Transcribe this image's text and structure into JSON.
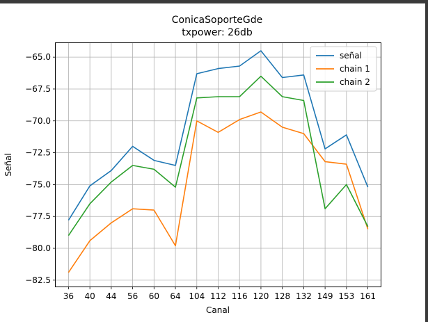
{
  "chart_data": {
    "type": "line",
    "title": "ConicaSoporteGde",
    "subtitle": "txpower: 26db",
    "xlabel": "Canal",
    "ylabel": "Señal",
    "categories": [
      "36",
      "40",
      "44",
      "56",
      "60",
      "64",
      "104",
      "112",
      "116",
      "120",
      "128",
      "132",
      "149",
      "153",
      "161"
    ],
    "ylim": [
      -83.0,
      -63.9
    ],
    "yticks": [
      -65.0,
      -67.5,
      -70.0,
      -72.5,
      -75.0,
      -77.5,
      -80.0,
      -82.5
    ],
    "ytick_labels": [
      "−65.0",
      "−67.5",
      "−70.0",
      "−72.5",
      "−75.0",
      "−77.5",
      "−80.0",
      "−82.5"
    ],
    "grid": true,
    "legend_position": "top-right",
    "series": [
      {
        "name": "señal",
        "color": "#1f77b4",
        "values": [
          -77.8,
          -75.1,
          -73.9,
          -72.0,
          -73.1,
          -73.5,
          -66.3,
          -65.9,
          -65.7,
          -64.5,
          -66.6,
          -66.4,
          -72.2,
          -71.1,
          -75.2
        ]
      },
      {
        "name": "chain 1",
        "color": "#ff7f0e",
        "values": [
          -81.9,
          -79.4,
          -78.0,
          -76.9,
          -77.0,
          -79.8,
          -70.0,
          -70.9,
          -69.9,
          -69.3,
          -70.5,
          -71.0,
          -73.2,
          -73.4,
          -78.5
        ]
      },
      {
        "name": "chain 2",
        "color": "#2ca02c",
        "values": [
          -79.0,
          -76.5,
          -74.8,
          -73.5,
          -73.8,
          -75.2,
          -68.2,
          -68.1,
          -68.1,
          -66.5,
          -68.1,
          -68.4,
          -76.9,
          -75.0,
          -78.3
        ]
      }
    ]
  }
}
